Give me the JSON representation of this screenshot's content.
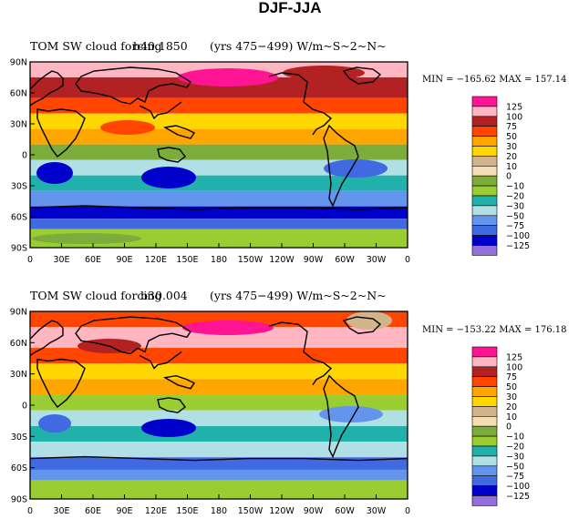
{
  "figure": {
    "title": "DJF-JJA",
    "colors": {
      "land_outline": "#000000",
      "frame": "#000000"
    }
  },
  "colorbar": {
    "levels": [
      "125",
      "100",
      "75",
      "50",
      "30",
      "20",
      "10",
      "0",
      "−10",
      "−20",
      "−30",
      "−50",
      "−75",
      "−100",
      "−125"
    ],
    "colors": [
      "#ff1493",
      "#ffb6c1",
      "#b22222",
      "#ff4500",
      "#ffa500",
      "#ffd700",
      "#d2b48c",
      "#f5deb3",
      "#7cac3c",
      "#9acd32",
      "#20b2aa",
      "#b0e0e6",
      "#6495ed",
      "#4169e1",
      "#0000cd",
      "#9370db"
    ]
  },
  "axes": {
    "lon_labels": [
      "0",
      "30E",
      "60E",
      "90E",
      "120E",
      "150E",
      "180",
      "150W",
      "120W",
      "90W",
      "60W",
      "30W",
      "0"
    ],
    "lat_labels": [
      "90N",
      "60N",
      "30N",
      "0",
      "30S",
      "60S",
      "90S"
    ]
  },
  "panels": [
    {
      "title_left": "TOM SW cloud forcing",
      "title_overlap": "b40.1850",
      "title_right": "(yrs 475−499)  W/m~S~2~N~",
      "stats": "MIN = −165.62  MAX = 157.14"
    },
    {
      "title_left": "TOM SW cloud forcing",
      "title_overlap": "b30.004",
      "title_right": "(yrs 475−499)  W/m~S~2~N~",
      "stats": "MIN = −153.22  MAX = 176.18"
    }
  ],
  "chart_data": [
    {
      "type": "heatmap",
      "title": "TOM SW cloud forcing (yrs 475−499) W/m~S~2~N~",
      "x_ticks": [
        "0",
        "30E",
        "60E",
        "90E",
        "120E",
        "150E",
        "180",
        "150W",
        "120W",
        "90W",
        "60W",
        "30W",
        "0"
      ],
      "y_ticks": [
        "90N",
        "60N",
        "30N",
        "0",
        "30S",
        "60S",
        "90S"
      ],
      "xlim": [
        0,
        360
      ],
      "ylim": [
        -90,
        90
      ],
      "min": -165.62,
      "max": 157.14,
      "levels": [
        -125,
        -100,
        -75,
        -50,
        -30,
        -20,
        -10,
        0,
        10,
        20,
        30,
        50,
        75,
        100,
        125
      ],
      "zonal_bands": [
        {
          "lat": [
            75,
            90
          ],
          "value": 110
        },
        {
          "lat": [
            55,
            75
          ],
          "value": 80
        },
        {
          "lat": [
            40,
            55
          ],
          "value": 60
        },
        {
          "lat": [
            25,
            40
          ],
          "value": 20
        },
        {
          "lat": [
            10,
            25
          ],
          "value": 40
        },
        {
          "lat": [
            -5,
            10
          ],
          "value": -10
        },
        {
          "lat": [
            -20,
            -5
          ],
          "value": -40
        },
        {
          "lat": [
            -35,
            -20
          ],
          "value": -30
        },
        {
          "lat": [
            -50,
            -35
          ],
          "value": -55
        },
        {
          "lat": [
            -62,
            -50
          ],
          "value": -110
        },
        {
          "lat": [
            -72,
            -62
          ],
          "value": -80
        },
        {
          "lat": [
            -90,
            -72
          ],
          "value": -20
        }
      ]
    },
    {
      "type": "heatmap",
      "title": "TOM SW cloud forcing (yrs 475−499) W/m~S~2~N~",
      "x_ticks": [
        "0",
        "30E",
        "60E",
        "90E",
        "120E",
        "150E",
        "180",
        "150W",
        "120W",
        "90W",
        "60W",
        "30W",
        "0"
      ],
      "y_ticks": [
        "90N",
        "60N",
        "30N",
        "0",
        "30S",
        "60S",
        "90S"
      ],
      "xlim": [
        0,
        360
      ],
      "ylim": [
        -90,
        90
      ],
      "min": -153.22,
      "max": 176.18,
      "levels": [
        -125,
        -100,
        -75,
        -50,
        -30,
        -20,
        -10,
        0,
        10,
        20,
        30,
        50,
        75,
        100,
        125
      ],
      "zonal_bands": [
        {
          "lat": [
            75,
            90
          ],
          "value": 60
        },
        {
          "lat": [
            55,
            75
          ],
          "value": 100
        },
        {
          "lat": [
            40,
            55
          ],
          "value": 70
        },
        {
          "lat": [
            25,
            40
          ],
          "value": 25
        },
        {
          "lat": [
            10,
            25
          ],
          "value": 45
        },
        {
          "lat": [
            -5,
            10
          ],
          "value": -15
        },
        {
          "lat": [
            -20,
            -5
          ],
          "value": -35
        },
        {
          "lat": [
            -35,
            -20
          ],
          "value": -25
        },
        {
          "lat": [
            -50,
            -35
          ],
          "value": -45
        },
        {
          "lat": [
            -62,
            -50
          ],
          "value": -100
        },
        {
          "lat": [
            -72,
            -62
          ],
          "value": -70
        },
        {
          "lat": [
            -90,
            -72
          ],
          "value": -15
        }
      ]
    }
  ]
}
